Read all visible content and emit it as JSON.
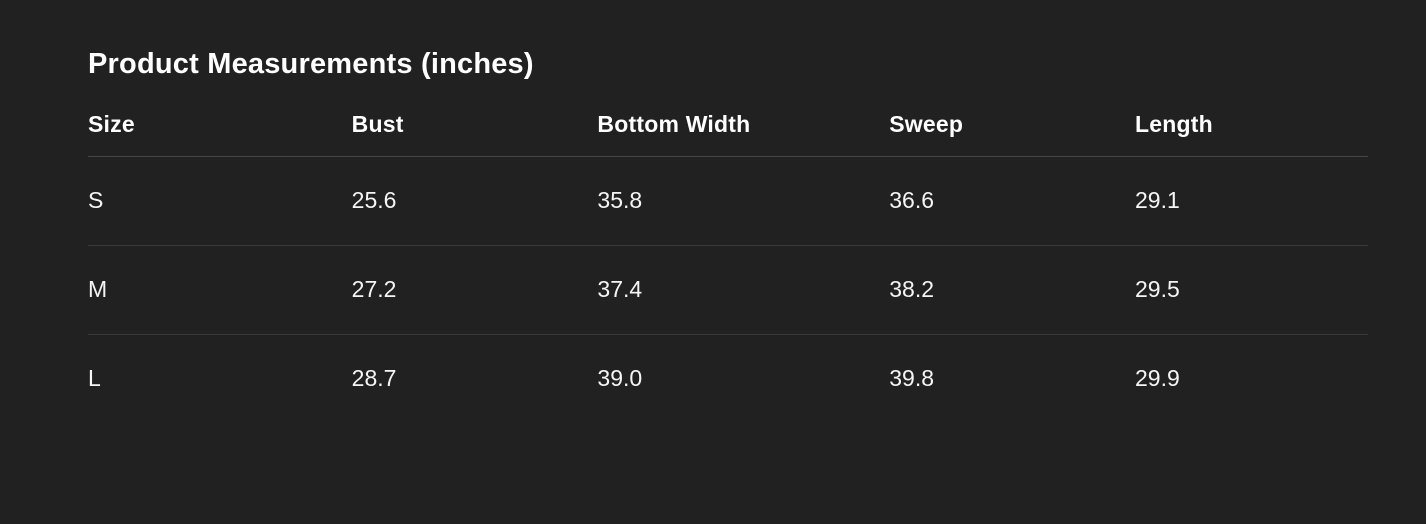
{
  "page": {
    "title": "Product Measurements (inches)"
  },
  "colors": {
    "background": "#212121",
    "title_text": "#ffffff",
    "cell_text": "#f5f5f5",
    "header_divider": "#474747",
    "row_divider": "#3a3a3a"
  },
  "table": {
    "columns": [
      "Size",
      "Bust",
      "Bottom Width",
      "Sweep",
      "Length"
    ],
    "rows": [
      {
        "size": "S",
        "bust": "25.6",
        "bottom_width": "35.8",
        "sweep": "36.6",
        "length": "29.1"
      },
      {
        "size": "M",
        "bust": "27.2",
        "bottom_width": "37.4",
        "sweep": "38.2",
        "length": "29.5"
      },
      {
        "size": "L",
        "bust": "28.7",
        "bottom_width": "39.0",
        "sweep": "39.8",
        "length": "29.9"
      }
    ]
  }
}
